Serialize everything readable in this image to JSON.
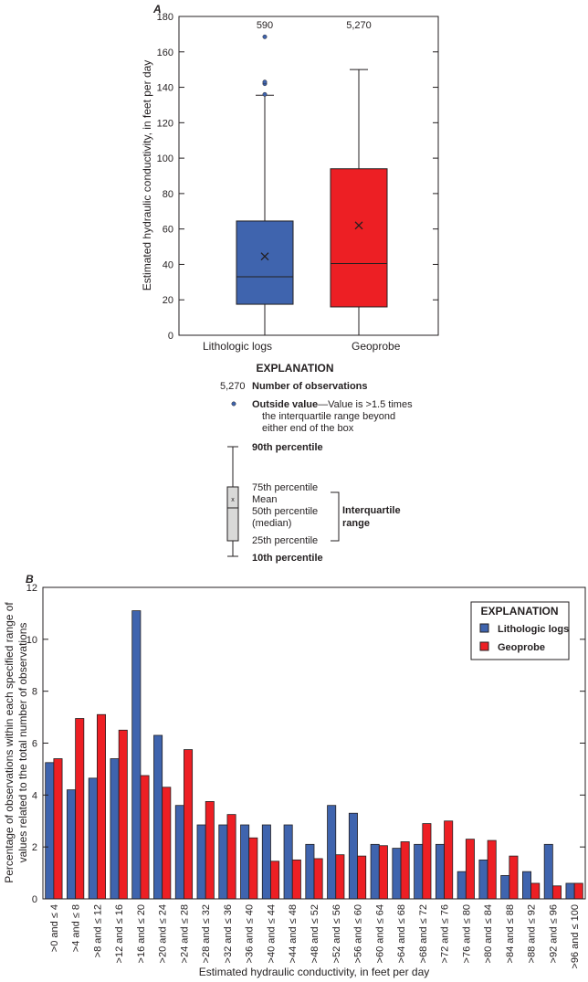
{
  "chart_data": [
    {
      "type": "box",
      "panel_label": "A",
      "ylabel": "Estimated hydraulic conductivity, in feet per day",
      "ylim": [
        0,
        180
      ],
      "yticks": [
        0,
        20,
        40,
        60,
        80,
        100,
        120,
        140,
        160,
        180
      ],
      "categories": [
        "Lithologic logs",
        "Geoprobe"
      ],
      "counts": [
        "590",
        "5,270"
      ],
      "colors": [
        "#3f64ae",
        "#ed1f24"
      ],
      "boxes": [
        {
          "p10": 0,
          "p25": 17.5,
          "median": 33,
          "mean": 44.5,
          "p75": 64.5,
          "p90": 135.5,
          "outliers": [
            136,
            142,
            143,
            168.5
          ]
        },
        {
          "p10": 0,
          "p25": 16,
          "median": 40.5,
          "mean": 62,
          "p75": 94,
          "p90": 150,
          "outliers": []
        }
      ],
      "explanation": {
        "title": "EXPLANATION",
        "count_example": "5,270",
        "count_label": "Number of observations",
        "outside_bold": "Outside value",
        "outside_text": "—Value is >1.5 times",
        "outside_line2": "the interquartile range beyond",
        "outside_line3": "either end of the box",
        "p90": "90th percentile",
        "p75": "75th percentile",
        "mean": "Mean",
        "p50": "50th percentile",
        "p50b": "(median)",
        "p25": "25th percentile",
        "p10": "10th percentile",
        "iqr1": "Interquartile",
        "iqr2": "range",
        "mean_mark": "x"
      }
    },
    {
      "type": "bar",
      "panel_label": "B",
      "xlabel": "Estimated hydraulic conductivity, in feet per day",
      "ylabel": [
        "Percentage of observations within each specified range of",
        "values related to the total number of observations"
      ],
      "ylim": [
        0,
        12
      ],
      "yticks": [
        0,
        2,
        4,
        6,
        8,
        10,
        12
      ],
      "legend": {
        "title": "EXPLANATION",
        "position": "top-right"
      },
      "categories": [
        ">0 and ≤ 4",
        ">4 and ≤ 8",
        ">8 and ≤ 12",
        ">12 and ≤ 16",
        ">16 and ≤ 20",
        ">20 and ≤ 24",
        ">24 and ≤ 28",
        ">28 and ≤ 32",
        ">32 and ≤ 36",
        ">36 and ≤ 40",
        ">40 and ≤ 44",
        ">44 and ≤ 48",
        ">48 and ≤ 52",
        ">52 and ≤ 56",
        ">56 and ≤ 60",
        ">60 and ≤ 64",
        ">64 and ≤ 68",
        ">68 and ≤ 72",
        ">72 and ≤ 76",
        ">76 and ≤ 80",
        ">80 and ≤ 84",
        ">84 and ≤ 88",
        ">88 and ≤ 92",
        ">92 and ≤ 96",
        ">96 and ≤ 100"
      ],
      "series": [
        {
          "name": "Lithologic logs",
          "color": "#3f64ae",
          "values": [
            5.25,
            4.2,
            4.65,
            5.4,
            11.1,
            6.3,
            3.6,
            2.85,
            2.85,
            2.85,
            2.85,
            2.85,
            2.1,
            3.6,
            3.3,
            2.1,
            1.95,
            2.1,
            2.1,
            1.05,
            1.5,
            0.9,
            1.05,
            2.1,
            0.6
          ]
        },
        {
          "name": "Geoprobe",
          "color": "#ed1f24",
          "values": [
            5.4,
            6.95,
            7.1,
            6.5,
            4.75,
            4.3,
            5.75,
            3.75,
            3.25,
            2.35,
            1.45,
            1.5,
            1.55,
            1.7,
            1.65,
            2.05,
            2.2,
            2.9,
            3.0,
            2.3,
            2.25,
            1.65,
            0.6,
            0.5,
            0.6
          ]
        }
      ]
    }
  ]
}
